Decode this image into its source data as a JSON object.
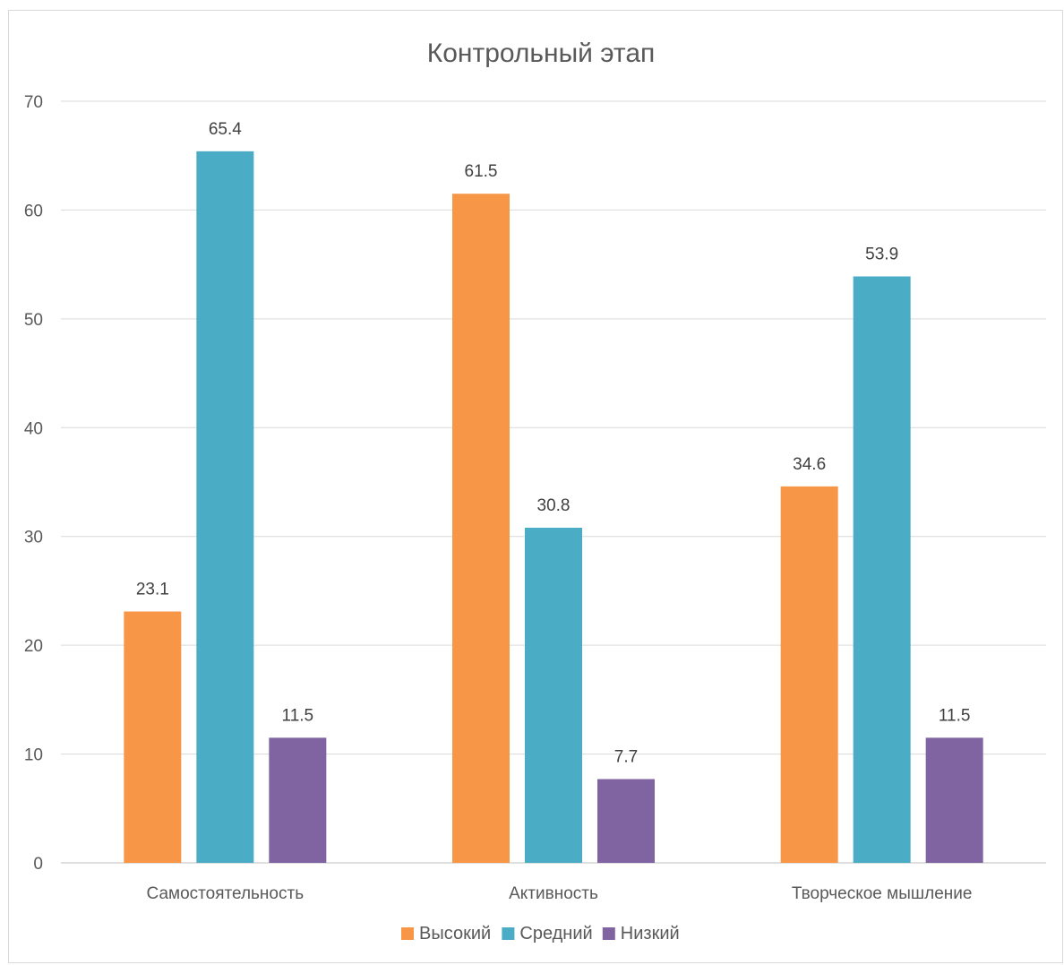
{
  "chart_data": {
    "type": "bar",
    "title": "Контрольный этап",
    "categories": [
      "Самостоятельность",
      "Активность",
      "Творческое мышление"
    ],
    "series": [
      {
        "name": "Высокий",
        "color": "#F79646",
        "values": [
          23.1,
          61.5,
          34.6
        ],
        "labels": [
          "23.1",
          "61.5",
          "34.6"
        ]
      },
      {
        "name": "Средний",
        "color": "#4BACC6",
        "values": [
          65.4,
          30.8,
          53.9
        ],
        "labels": [
          "65.4",
          "30.8",
          "53.9"
        ]
      },
      {
        "name": "Низкий",
        "color": "#8064A2",
        "values": [
          11.5,
          7.7,
          11.5
        ],
        "labels": [
          "11.5",
          "7.7",
          "11.5"
        ]
      }
    ],
    "ylim": [
      0,
      70
    ],
    "yticks": [
      "0",
      "10",
      "20",
      "30",
      "40",
      "50",
      "60",
      "70"
    ],
    "grid": true,
    "legend_position": "bottom"
  }
}
